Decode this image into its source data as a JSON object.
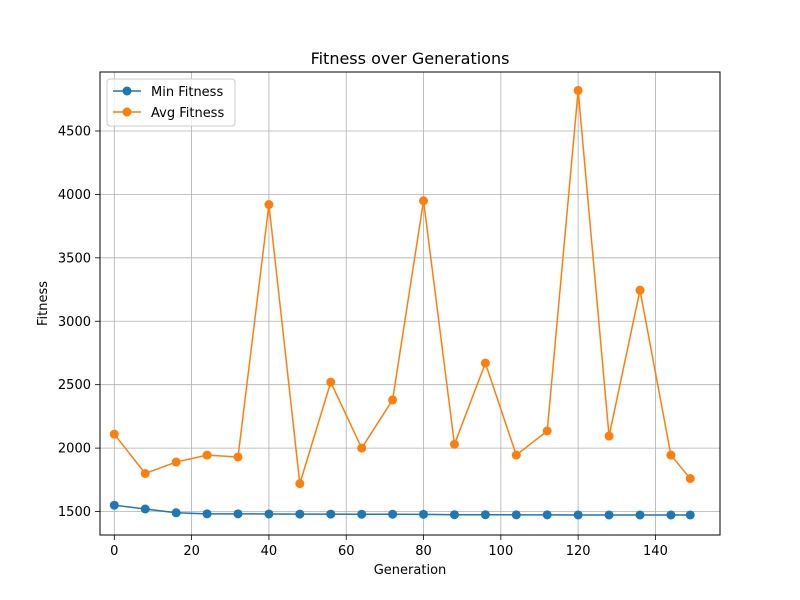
{
  "chart_data": {
    "type": "line",
    "title": "Fitness over Generations",
    "xlabel": "Generation",
    "ylabel": "Fitness",
    "x": [
      0,
      8,
      16,
      24,
      32,
      40,
      48,
      56,
      64,
      72,
      80,
      88,
      96,
      104,
      112,
      120,
      128,
      136,
      144,
      149
    ],
    "xlim": [
      -3.7,
      156.7
    ],
    "ylim": [
      1315,
      4965
    ],
    "xticks": [
      0,
      20,
      40,
      60,
      80,
      100,
      120,
      140
    ],
    "yticks": [
      1500,
      2000,
      2500,
      3000,
      3500,
      4000,
      4500
    ],
    "grid": true,
    "legend_position": "upper-left",
    "series": [
      {
        "name": "Min Fitness",
        "color": "#1f77b4",
        "values": [
          1550,
          1520,
          1490,
          1482,
          1482,
          1481,
          1480,
          1480,
          1479,
          1479,
          1478,
          1475,
          1475,
          1474,
          1474,
          1473,
          1473,
          1473,
          1473,
          1473
        ]
      },
      {
        "name": "Avg Fitness",
        "color": "#ff7f0e",
        "values": [
          2110,
          1800,
          1890,
          1945,
          1930,
          3920,
          1720,
          2520,
          2000,
          2380,
          3950,
          2030,
          2670,
          1945,
          2135,
          4820,
          2095,
          3245,
          1945,
          1760
        ]
      }
    ]
  }
}
